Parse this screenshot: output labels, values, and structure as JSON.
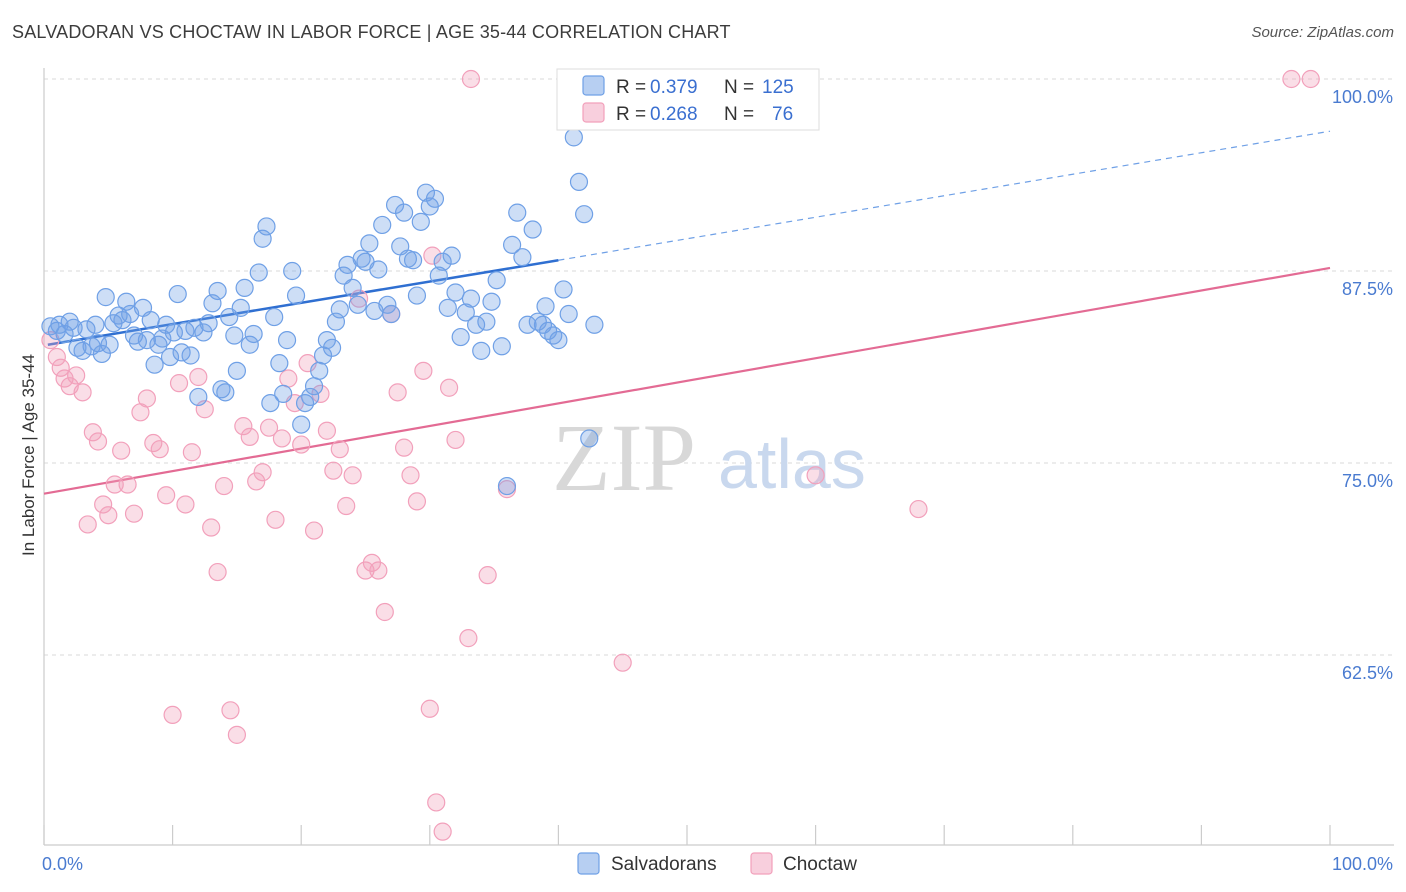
{
  "header": {
    "title": "SALVADORAN VS CHOCTAW IN LABOR FORCE | AGE 35-44 CORRELATION CHART",
    "source": "Source: ZipAtlas.com"
  },
  "legend": {
    "rows": [
      {
        "r_label": "R =",
        "r_value": "0.379",
        "n_label": "N =",
        "n_value": "125",
        "color": "#6fa0e6"
      },
      {
        "r_label": "R =",
        "r_value": "0.268",
        "n_label": "N =",
        "n_value": "76",
        "color": "#f2a0bb"
      }
    ]
  },
  "watermark": {
    "zip": "ZIP",
    "atlas": "atlas"
  },
  "chart_data": {
    "type": "scatter",
    "title": "SALVADORAN VS CHOCTAW IN LABOR FORCE | AGE 35-44 CORRELATION CHART",
    "xlabel": "",
    "ylabel": "In Labor Force | Age 35-44",
    "xlim": [
      0,
      100
    ],
    "ylim": [
      50,
      100
    ],
    "x_tick_labels": [
      "0.0%",
      "100.0%"
    ],
    "y_ticks": [
      {
        "value": 100,
        "label": "100.0%"
      },
      {
        "value": 87.5,
        "label": "87.5%"
      },
      {
        "value": 75,
        "label": "75.0%"
      },
      {
        "value": 62.5,
        "label": "62.5%"
      }
    ],
    "grid": true,
    "legend_position": "top-center",
    "series": [
      {
        "name": "Salvadorans",
        "color": "#6fa0e6",
        "trend": {
          "x0": 0.3,
          "y0": 82.7,
          "x1": 40,
          "y1": 88.2,
          "dash_x_end": 100,
          "dash_y_end": 96.6
        },
        "points": [
          [
            0.5,
            83.9
          ],
          [
            1.0,
            83.6
          ],
          [
            1.2,
            84.0
          ],
          [
            1.6,
            83.4
          ],
          [
            2.0,
            84.2
          ],
          [
            2.3,
            83.8
          ],
          [
            2.6,
            82.5
          ],
          [
            3.0,
            82.3
          ],
          [
            3.3,
            83.7
          ],
          [
            3.7,
            82.6
          ],
          [
            4.0,
            84.0
          ],
          [
            4.2,
            82.8
          ],
          [
            4.5,
            82.1
          ],
          [
            4.8,
            85.8
          ],
          [
            5.1,
            82.7
          ],
          [
            5.4,
            84.1
          ],
          [
            5.8,
            84.6
          ],
          [
            6.1,
            84.3
          ],
          [
            6.4,
            85.5
          ],
          [
            6.7,
            84.7
          ],
          [
            7.0,
            83.3
          ],
          [
            7.3,
            82.9
          ],
          [
            7.7,
            85.1
          ],
          [
            8.0,
            83.0
          ],
          [
            8.3,
            84.3
          ],
          [
            8.6,
            81.4
          ],
          [
            8.9,
            82.7
          ],
          [
            9.2,
            83.1
          ],
          [
            9.5,
            84.0
          ],
          [
            9.8,
            81.9
          ],
          [
            10.1,
            83.5
          ],
          [
            10.4,
            86.0
          ],
          [
            10.7,
            82.2
          ],
          [
            11.0,
            83.6
          ],
          [
            11.4,
            82.0
          ],
          [
            11.7,
            83.8
          ],
          [
            12.0,
            79.3
          ],
          [
            12.4,
            83.5
          ],
          [
            12.8,
            84.1
          ],
          [
            13.1,
            85.4
          ],
          [
            13.5,
            86.2
          ],
          [
            13.8,
            79.8
          ],
          [
            14.1,
            79.6
          ],
          [
            14.4,
            84.5
          ],
          [
            14.8,
            83.3
          ],
          [
            15.0,
            81.0
          ],
          [
            15.3,
            85.1
          ],
          [
            15.6,
            86.4
          ],
          [
            16.0,
            82.7
          ],
          [
            16.3,
            83.4
          ],
          [
            16.7,
            87.4
          ],
          [
            17.0,
            89.6
          ],
          [
            17.3,
            90.4
          ],
          [
            17.6,
            78.9
          ],
          [
            17.9,
            84.5
          ],
          [
            18.3,
            81.5
          ],
          [
            18.6,
            79.5
          ],
          [
            18.9,
            83.0
          ],
          [
            19.3,
            87.5
          ],
          [
            19.6,
            85.9
          ],
          [
            20.0,
            77.5
          ],
          [
            20.3,
            78.9
          ],
          [
            20.7,
            79.3
          ],
          [
            21.0,
            80.0
          ],
          [
            21.4,
            81.0
          ],
          [
            21.7,
            82.0
          ],
          [
            22.0,
            83.0
          ],
          [
            22.4,
            82.5
          ],
          [
            22.7,
            84.2
          ],
          [
            23.0,
            85.0
          ],
          [
            23.3,
            87.2
          ],
          [
            23.6,
            87.9
          ],
          [
            24.0,
            86.4
          ],
          [
            24.4,
            85.3
          ],
          [
            24.7,
            88.3
          ],
          [
            25.0,
            88.1
          ],
          [
            25.3,
            89.3
          ],
          [
            25.7,
            84.9
          ],
          [
            26.0,
            87.6
          ],
          [
            26.3,
            90.5
          ],
          [
            26.7,
            85.3
          ],
          [
            27.0,
            84.7
          ],
          [
            27.3,
            91.8
          ],
          [
            27.7,
            89.1
          ],
          [
            28.0,
            91.3
          ],
          [
            28.3,
            88.3
          ],
          [
            28.7,
            88.2
          ],
          [
            29.0,
            85.9
          ],
          [
            29.3,
            90.7
          ],
          [
            29.7,
            92.6
          ],
          [
            30.0,
            91.7
          ],
          [
            30.4,
            92.2
          ],
          [
            30.7,
            87.2
          ],
          [
            31.0,
            88.1
          ],
          [
            31.4,
            85.1
          ],
          [
            31.7,
            88.5
          ],
          [
            32.0,
            86.1
          ],
          [
            32.4,
            83.2
          ],
          [
            32.8,
            84.8
          ],
          [
            33.2,
            85.7
          ],
          [
            33.6,
            84.0
          ],
          [
            34.0,
            82.3
          ],
          [
            34.4,
            84.2
          ],
          [
            34.8,
            85.5
          ],
          [
            35.2,
            86.9
          ],
          [
            35.6,
            82.6
          ],
          [
            36.0,
            73.5
          ],
          [
            36.4,
            89.2
          ],
          [
            36.8,
            91.3
          ],
          [
            37.2,
            88.4
          ],
          [
            37.6,
            84.0
          ],
          [
            38.0,
            90.2
          ],
          [
            38.4,
            84.2
          ],
          [
            38.8,
            84.0
          ],
          [
            39.2,
            83.6
          ],
          [
            39.6,
            83.3
          ],
          [
            40.0,
            83.0
          ],
          [
            40.4,
            86.3
          ],
          [
            40.8,
            84.7
          ],
          [
            41.2,
            96.2
          ],
          [
            41.6,
            93.3
          ],
          [
            42.0,
            91.2
          ],
          [
            42.4,
            76.6
          ],
          [
            42.8,
            84.0
          ],
          [
            39.0,
            85.2
          ]
        ]
      },
      {
        "name": "Choctaw",
        "color": "#f2a0bb",
        "trend": {
          "x0": 0,
          "y0": 73.0,
          "x1": 100,
          "y1": 87.7
        },
        "points": [
          [
            0.5,
            83.0
          ],
          [
            1.0,
            81.9
          ],
          [
            1.3,
            81.2
          ],
          [
            1.6,
            80.5
          ],
          [
            2.0,
            80.0
          ],
          [
            2.5,
            80.7
          ],
          [
            3.0,
            79.6
          ],
          [
            3.4,
            71.0
          ],
          [
            3.8,
            77.0
          ],
          [
            4.2,
            76.4
          ],
          [
            4.6,
            72.3
          ],
          [
            5.0,
            71.6
          ],
          [
            5.5,
            73.6
          ],
          [
            6.0,
            75.8
          ],
          [
            6.5,
            73.6
          ],
          [
            7.0,
            71.7
          ],
          [
            7.5,
            78.3
          ],
          [
            8.0,
            79.2
          ],
          [
            8.5,
            76.3
          ],
          [
            9.0,
            75.9
          ],
          [
            9.5,
            72.9
          ],
          [
            10.0,
            58.6
          ],
          [
            10.5,
            80.2
          ],
          [
            11.0,
            72.3
          ],
          [
            11.5,
            75.7
          ],
          [
            12.0,
            80.6
          ],
          [
            12.5,
            78.5
          ],
          [
            13.0,
            70.8
          ],
          [
            13.5,
            67.9
          ],
          [
            14.0,
            73.5
          ],
          [
            14.5,
            58.9
          ],
          [
            15.0,
            57.3
          ],
          [
            15.5,
            77.4
          ],
          [
            16.0,
            76.7
          ],
          [
            16.5,
            73.8
          ],
          [
            17.0,
            74.4
          ],
          [
            17.5,
            77.3
          ],
          [
            18.0,
            71.3
          ],
          [
            18.5,
            76.6
          ],
          [
            19.0,
            80.5
          ],
          [
            19.5,
            78.9
          ],
          [
            20.0,
            76.2
          ],
          [
            20.5,
            81.5
          ],
          [
            21.0,
            70.6
          ],
          [
            21.5,
            79.5
          ],
          [
            22.0,
            77.1
          ],
          [
            22.5,
            74.5
          ],
          [
            23.0,
            75.9
          ],
          [
            23.5,
            72.2
          ],
          [
            24.0,
            74.2
          ],
          [
            24.5,
            85.7
          ],
          [
            25.0,
            68.0
          ],
          [
            25.5,
            68.5
          ],
          [
            26.0,
            68.0
          ],
          [
            26.5,
            65.3
          ],
          [
            27.0,
            84.7
          ],
          [
            27.5,
            79.6
          ],
          [
            28.0,
            76.0
          ],
          [
            28.5,
            74.2
          ],
          [
            29.0,
            72.5
          ],
          [
            29.5,
            81.0
          ],
          [
            30.0,
            59.0
          ],
          [
            30.5,
            52.9
          ],
          [
            31.0,
            51.0
          ],
          [
            30.2,
            88.5
          ],
          [
            31.5,
            79.9
          ],
          [
            32.0,
            76.5
          ],
          [
            33.0,
            63.6
          ],
          [
            34.5,
            67.7
          ],
          [
            36.0,
            73.3
          ],
          [
            45.0,
            62.0
          ],
          [
            60.0,
            74.2
          ],
          [
            68.0,
            72.0
          ],
          [
            97.0,
            100.0
          ],
          [
            98.5,
            100.0
          ],
          [
            33.2,
            100.0
          ]
        ]
      }
    ]
  },
  "bottom_legend": [
    {
      "label": "Salvadorans",
      "color": "#6fa0e6"
    },
    {
      "label": "Choctaw",
      "color": "#f2a0bb"
    }
  ]
}
